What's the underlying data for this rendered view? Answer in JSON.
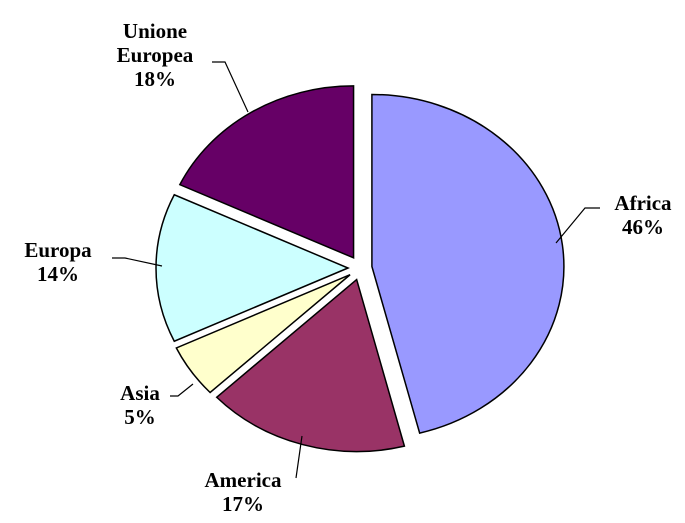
{
  "chart_data": {
    "type": "pie",
    "categories": [
      "Africa",
      "America",
      "Asia",
      "Europa",
      "Unione Europea"
    ],
    "values": [
      46,
      17,
      5,
      14,
      18
    ],
    "value_labels": [
      "46%",
      "17%",
      "5%",
      "14%",
      "18%"
    ],
    "colors": [
      "#9999ff",
      "#993366",
      "#ffffcc",
      "#ccffff",
      "#660066"
    ]
  }
}
